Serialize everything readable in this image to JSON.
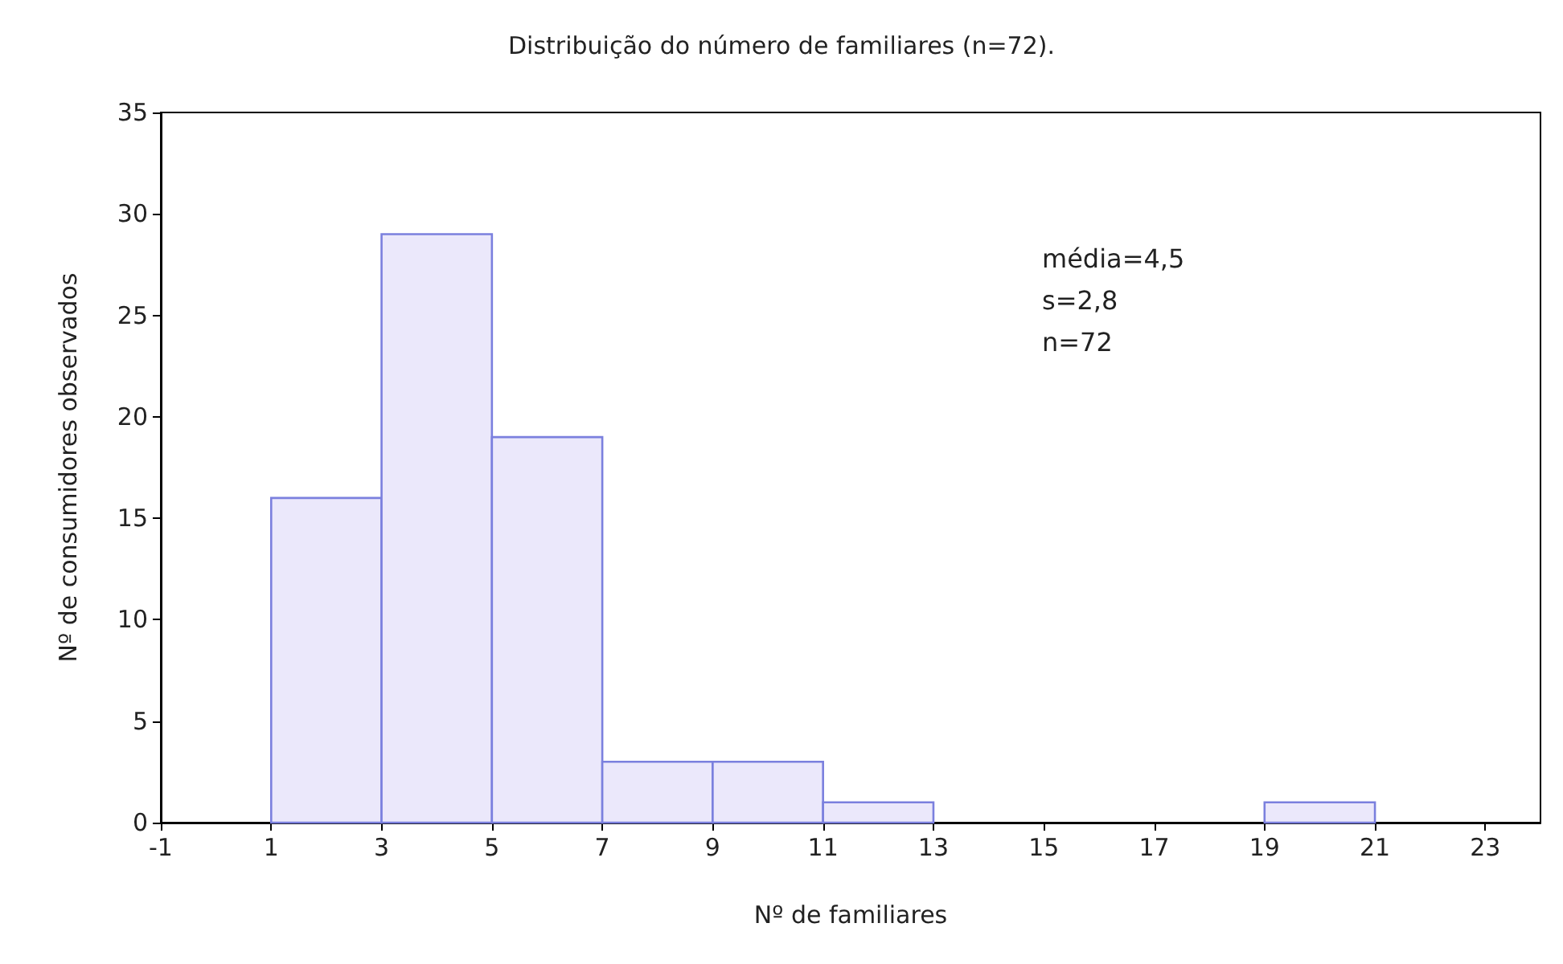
{
  "chart_data": {
    "type": "histogram",
    "title": "Distribuição do número de familiares (n=72).",
    "xlabel": "Nº de familiares",
    "ylabel": "Nº de consumidores observados",
    "bins": [
      1,
      3,
      5,
      7,
      9,
      11,
      13,
      15,
      17,
      19,
      21
    ],
    "values": [
      16,
      29,
      19,
      3,
      3,
      1,
      0,
      0,
      0,
      1
    ],
    "color": "#ebe8fb",
    "xlim": [
      -1,
      24
    ],
    "xticks": [
      -1,
      1,
      3,
      5,
      7,
      9,
      11,
      13,
      15,
      17,
      19,
      21,
      23
    ],
    "ylim": [
      0,
      35
    ],
    "yticks": [
      0,
      5,
      10,
      15,
      20,
      25,
      30,
      35
    ],
    "grid": false,
    "annotations": [
      "média=4,5",
      "s=2,8",
      "n=72"
    ]
  }
}
